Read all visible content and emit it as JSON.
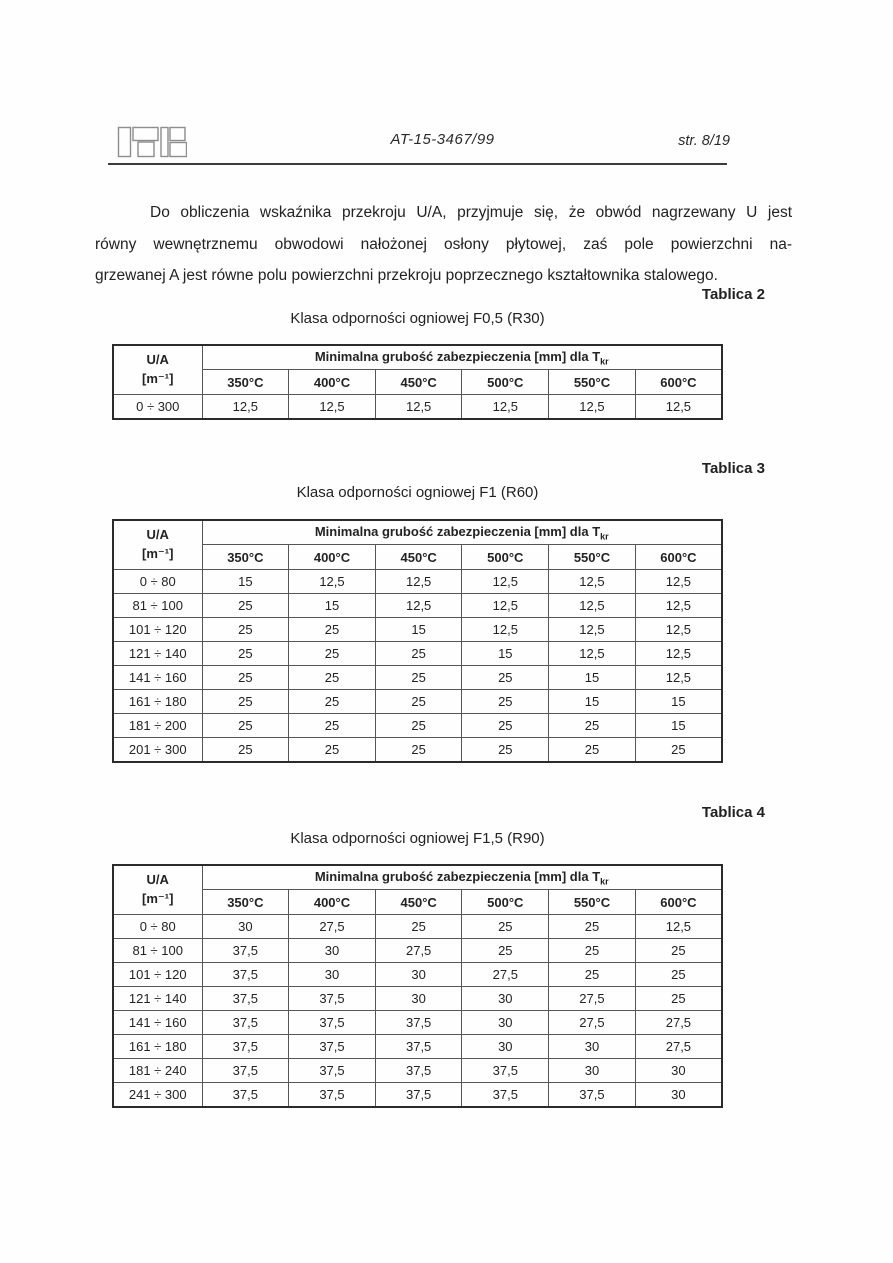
{
  "header": {
    "logo": "itb-logo",
    "doc_number": "AT-15-3467/99",
    "page_number": "str. 8/19"
  },
  "paragraph": {
    "lines": [
      "Do obliczenia wskaźnika przekroju U/A, przyjmuje się, że obwód nagrzewany U jest",
      "równy wewnętrznemu obwodowi nałożonej osłony płytowej, zaś pole powierzchni na-",
      "grzewanej A jest równe polu powierzchni przekroju poprzecznego kształtownika stalowego."
    ]
  },
  "table_header": {
    "col1_line1": "U/A",
    "col1_line2": "[m⁻¹]",
    "span_label": "Minimalna grubość zabezpieczenia [mm] dla T",
    "span_label_sub": "kr",
    "temps": [
      "350°C",
      "400°C",
      "450°C",
      "500°C",
      "550°C",
      "600°C"
    ]
  },
  "tables": [
    {
      "label": "Tablica 2",
      "title": "Klasa odporności ogniowej F0,5 (R30)",
      "rows": [
        {
          "ua": "0 ÷ 300",
          "values": [
            "12,5",
            "12,5",
            "12,5",
            "12,5",
            "12,5",
            "12,5"
          ]
        }
      ]
    },
    {
      "label": "Tablica 3",
      "title": "Klasa odporności ogniowej F1 (R60)",
      "rows": [
        {
          "ua": "0 ÷ 80",
          "values": [
            "15",
            "12,5",
            "12,5",
            "12,5",
            "12,5",
            "12,5"
          ]
        },
        {
          "ua": "81 ÷ 100",
          "values": [
            "25",
            "15",
            "12,5",
            "12,5",
            "12,5",
            "12,5"
          ]
        },
        {
          "ua": "101 ÷ 120",
          "values": [
            "25",
            "25",
            "15",
            "12,5",
            "12,5",
            "12,5"
          ]
        },
        {
          "ua": "121 ÷ 140",
          "values": [
            "25",
            "25",
            "25",
            "15",
            "12,5",
            "12,5"
          ]
        },
        {
          "ua": "141 ÷ 160",
          "values": [
            "25",
            "25",
            "25",
            "25",
            "15",
            "12,5"
          ]
        },
        {
          "ua": "161 ÷ 180",
          "values": [
            "25",
            "25",
            "25",
            "25",
            "15",
            "15"
          ]
        },
        {
          "ua": "181 ÷ 200",
          "values": [
            "25",
            "25",
            "25",
            "25",
            "25",
            "15"
          ]
        },
        {
          "ua": "201 ÷ 300",
          "values": [
            "25",
            "25",
            "25",
            "25",
            "25",
            "25"
          ]
        }
      ]
    },
    {
      "label": "Tablica 4",
      "title": "Klasa odporności ogniowej F1,5 (R90)",
      "rows": [
        {
          "ua": "0 ÷ 80",
          "values": [
            "30",
            "27,5",
            "25",
            "25",
            "25",
            "12,5"
          ]
        },
        {
          "ua": "81 ÷ 100",
          "values": [
            "37,5",
            "30",
            "27,5",
            "25",
            "25",
            "25"
          ]
        },
        {
          "ua": "101 ÷ 120",
          "values": [
            "37,5",
            "30",
            "30",
            "27,5",
            "25",
            "25"
          ]
        },
        {
          "ua": "121 ÷ 140",
          "values": [
            "37,5",
            "37,5",
            "30",
            "30",
            "27,5",
            "25"
          ]
        },
        {
          "ua": "141 ÷ 160",
          "values": [
            "37,5",
            "37,5",
            "37,5",
            "30",
            "27,5",
            "27,5"
          ]
        },
        {
          "ua": "161 ÷ 180",
          "values": [
            "37,5",
            "37,5",
            "37,5",
            "30",
            "30",
            "27,5"
          ]
        },
        {
          "ua": "181 ÷ 240",
          "values": [
            "37,5",
            "37,5",
            "37,5",
            "37,5",
            "30",
            "30"
          ]
        },
        {
          "ua": "241 ÷ 300",
          "values": [
            "37,5",
            "37,5",
            "37,5",
            "37,5",
            "37,5",
            "30"
          ]
        }
      ]
    }
  ]
}
